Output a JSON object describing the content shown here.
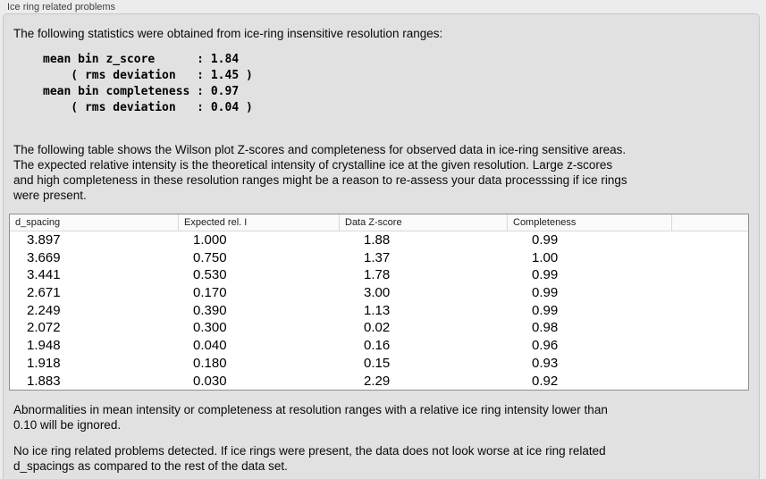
{
  "window": {
    "title": "Ice ring related problems"
  },
  "colors": {
    "outer_bg": "#ececec",
    "panel_bg": "#e1e1e1",
    "panel_border": "#c7c7c7",
    "table_bg": "#ffffff",
    "table_border": "#8f8f8f",
    "header_divider": "#d8d8d8"
  },
  "intro": {
    "text": "The following statistics were obtained from ice-ring insensitive resolution ranges:"
  },
  "stats_block": {
    "lines": "mean bin z_score      : 1.84\n    ( rms deviation   : 1.45 )\nmean bin completeness : 0.97\n    ( rms deviation   : 0.04 )"
  },
  "table_intro": {
    "text": "The following table shows the Wilson plot Z-scores and completeness for observed data in ice-ring sensitive areas.\nThe expected relative intensity is the theoretical intensity of crystalline ice at the given resolution. Large z-scores\nand high completeness in these resolution ranges might be a reason to re-assess your data processsing if ice rings\nwere present."
  },
  "table": {
    "columns": [
      "d_spacing",
      "Expected rel. I",
      "Data Z-score",
      "Completeness"
    ],
    "rows": [
      [
        "3.897",
        "1.000",
        "1.88",
        "0.99"
      ],
      [
        "3.669",
        "0.750",
        "1.37",
        "1.00"
      ],
      [
        "3.441",
        "0.530",
        "1.78",
        "0.99"
      ],
      [
        "2.671",
        "0.170",
        "3.00",
        "0.99"
      ],
      [
        "2.249",
        "0.390",
        "1.13",
        "0.99"
      ],
      [
        "2.072",
        "0.300",
        "0.02",
        "0.98"
      ],
      [
        "1.948",
        "0.040",
        "0.16",
        "0.96"
      ],
      [
        "1.918",
        "0.180",
        "0.15",
        "0.93"
      ],
      [
        "1.883",
        "0.030",
        "2.29",
        "0.92"
      ]
    ]
  },
  "notes": {
    "ignore_note": "Abnormalities in mean intensity or completeness at resolution ranges with a relative ice ring intensity lower than\n0.10 will be ignored.",
    "conclusion": "No ice ring related problems detected. If ice rings were present, the data does not look worse at ice ring related\nd_spacings as compared to the rest of the data set."
  }
}
